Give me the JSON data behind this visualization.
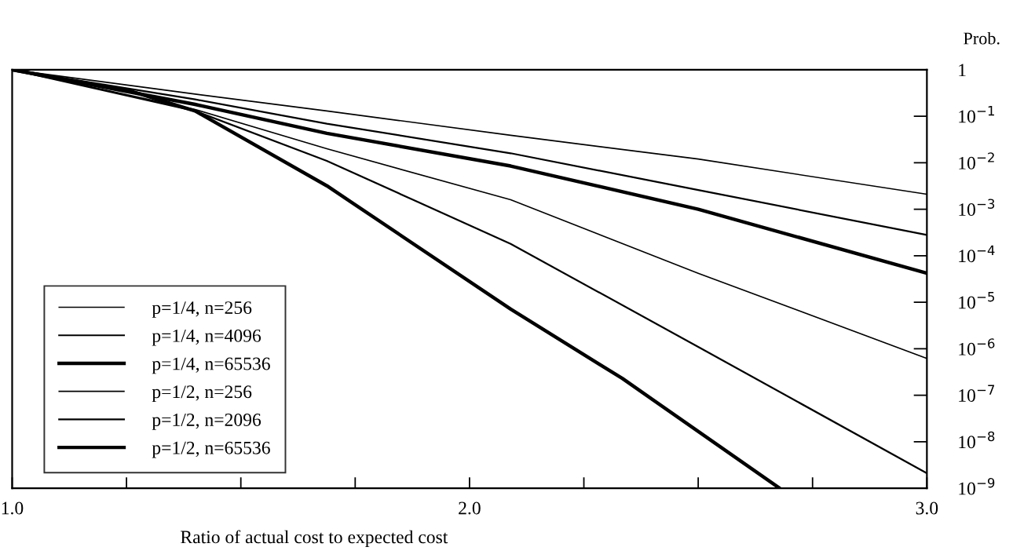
{
  "chart_data": {
    "type": "line",
    "xlabel": "Ratio of actual cost to expected cost",
    "ylabel": "Prob.",
    "log": "y",
    "grid": false,
    "legend": "lower left",
    "marker": "none",
    "line_style": "solid",
    "xlim": [
      1.0,
      3.0
    ],
    "xticks": [
      {
        "value": 1.0,
        "label": "1.0"
      },
      {
        "value": 1.25,
        "label": null
      },
      {
        "value": 1.5,
        "label": null
      },
      {
        "value": 1.75,
        "label": null
      },
      {
        "value": 2.0,
        "label": "2.0"
      },
      {
        "value": 2.25,
        "label": null
      },
      {
        "value": 2.5,
        "label": null
      },
      {
        "value": 2.75,
        "label": null
      },
      {
        "value": 3.0,
        "label": "3.0"
      }
    ],
    "ylim": [
      1e-09,
      1
    ],
    "yticks": [
      {
        "value": 1,
        "label": "1"
      },
      {
        "value": 0.1,
        "label": "10$^{−1}$"
      },
      {
        "value": 0.01,
        "label": "10$^{−2}$"
      },
      {
        "value": 0.001,
        "label": "10$^{−3}$"
      },
      {
        "value": 0.0001,
        "label": "10$^{−4}$"
      },
      {
        "value": 1e-05,
        "label": "10$^{−5}$"
      },
      {
        "value": 1e-06,
        "label": "10$^{−6}$"
      },
      {
        "value": 1e-07,
        "label": "10$^{−7}$"
      },
      {
        "value": 1e-08,
        "label": "10$^{−8}$"
      },
      {
        "value": 1e-09,
        "label": "10$^{−9}$"
      }
    ],
    "series": [
      {
        "name": "p=1/4, n=256",
        "color": "#000000",
        "x": [
          1.0,
          1.4,
          1.688,
          2.09,
          2.5,
          3.0
        ],
        "values": [
          1,
          0.3,
          0.13,
          0.039,
          0.012,
          0.0021
        ]
      },
      {
        "name": "p=1/4, n=4096",
        "color": "#000000",
        "x": [
          1.0,
          1.4,
          1.688,
          2.09,
          2.5,
          3.0
        ],
        "values": [
          1,
          0.23,
          0.069,
          0.016,
          0.0026,
          0.00028
        ]
      },
      {
        "name": "p=1/4, n=65536",
        "color": "#000000",
        "x": [
          1.0,
          1.4,
          1.688,
          2.09,
          2.5,
          3.0
        ],
        "values": [
          1,
          0.18,
          0.043,
          0.0085,
          0.001,
          4.2e-05
        ]
      },
      {
        "name": "p=1/2, n=256",
        "color": "#000000",
        "x": [
          1.0,
          1.4,
          1.688,
          2.09,
          2.5,
          3.0
        ],
        "values": [
          1,
          0.14,
          0.02,
          0.0016,
          4.2e-05,
          6.2e-07
        ]
      },
      {
        "name": "p=1/2, n=2096",
        "color": "#000000",
        "x": [
          1.0,
          1.4,
          1.688,
          2.09,
          2.5,
          3.0
        ],
        "values": [
          1,
          0.13,
          0.011,
          0.00018,
          1.1e-06,
          2.1e-09
        ]
      },
      {
        "name": "p=1/2, n=65536",
        "color": "#000000",
        "x": [
          1.0,
          1.258,
          1.4,
          1.688,
          2.09,
          2.334,
          2.678
        ],
        "values": [
          1,
          0.35,
          0.13,
          0.0032,
          7.1e-06,
          2.3e-07,
          1e-09
        ]
      }
    ]
  }
}
